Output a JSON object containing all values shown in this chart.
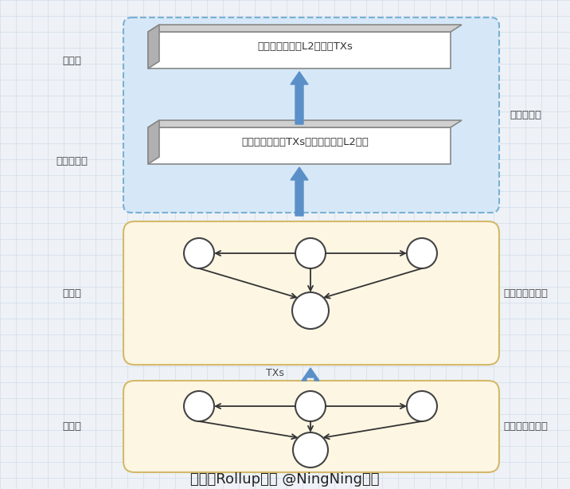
{
  "title": "主权性Rollup架构 @NingNing制图",
  "bg_color": "#eef2f7",
  "grid_color": "#d0dce8",
  "blue_box_color": "#d6e8f7",
  "blue_box_border": "#7ab0d4",
  "yellow_box_color": "#fdf6e3",
  "yellow_box_border": "#d4b96a",
  "arrow_fill": "#5b8fc7",
  "arrow_outline": "#5b8fc7",
  "circle_fill": "#ffffff",
  "circle_border": "#444444",
  "line_color": "#333333",
  "label_color": "#444444",
  "consensus_label": "共识层",
  "data_label": "数据可用层",
  "compute_label": "结算层",
  "exec_label": "执行层",
  "eth_label": "以太坊主网",
  "sovereign_label": "主权性验证网络",
  "decentral_label": "去中心化序列器",
  "box1_text": "排序和最终确认L2提交的TXs",
  "box2_text": "保存经过验证的TXs，可随时重建L2状态",
  "txs_label": "TXs",
  "font_cn": "SimSun"
}
